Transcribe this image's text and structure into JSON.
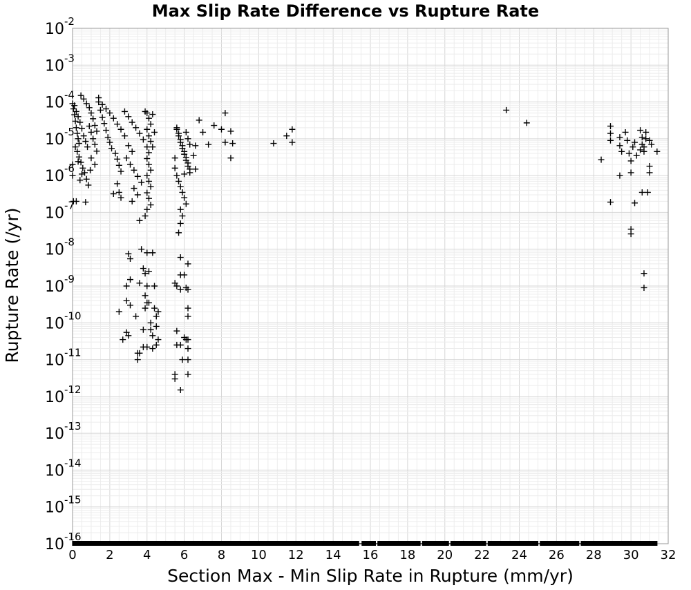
{
  "chart_data": {
    "type": "scatter",
    "title": "Max Slip Rate Difference vs Rupture Rate",
    "xlabel": "Section Max - Min Slip Rate in Rupture (mm/yr)",
    "ylabel": "Rupture Rate (/yr)",
    "xlim": [
      0,
      32
    ],
    "ylim": [
      1e-16,
      0.01
    ],
    "yscale": "log",
    "grid": true,
    "marker": "+",
    "marker_color": "#000000",
    "x_ticks": [
      "0",
      "2",
      "4",
      "6",
      "8",
      "10",
      "12",
      "14",
      "16",
      "18",
      "20",
      "22",
      "24",
      "26",
      "28",
      "30",
      "32"
    ],
    "y_ticks": [
      {
        "base": "10",
        "exp": "-2"
      },
      {
        "base": "10",
        "exp": "-3"
      },
      {
        "base": "10",
        "exp": "-4"
      },
      {
        "base": "10",
        "exp": "-5"
      },
      {
        "base": "10",
        "exp": "-6"
      },
      {
        "base": "10",
        "exp": "-7"
      },
      {
        "base": "10",
        "exp": "-8"
      },
      {
        "base": "10",
        "exp": "-9"
      },
      {
        "base": "10",
        "exp": "-10"
      },
      {
        "base": "10",
        "exp": "-11"
      },
      {
        "base": "10",
        "exp": "-12"
      },
      {
        "base": "10",
        "exp": "-13"
      },
      {
        "base": "10",
        "exp": "-14"
      },
      {
        "base": "10",
        "exp": "-15"
      },
      {
        "base": "10",
        "exp": "-16"
      }
    ],
    "points": [
      [
        0.0,
        9e-05
      ],
      [
        0.05,
        6.5e-05
      ],
      [
        0.1,
        4.5e-05
      ],
      [
        0.15,
        3e-05
      ],
      [
        0.2,
        2e-05
      ],
      [
        0.25,
        1.4e-05
      ],
      [
        0.3,
        1e-05
      ],
      [
        0.35,
        7.5e-06
      ],
      [
        0.1,
        8e-05
      ],
      [
        0.2,
        5.5e-05
      ],
      [
        0.3,
        4e-05
      ],
      [
        0.4,
        2.8e-05
      ],
      [
        0.5,
        1.9e-05
      ],
      [
        0.6,
        1.2e-05
      ],
      [
        0.7,
        8.5e-06
      ],
      [
        0.8,
        6e-06
      ],
      [
        0.45,
        0.00015
      ],
      [
        0.6,
        0.00012
      ],
      [
        0.75,
        9e-05
      ],
      [
        0.9,
        7e-05
      ],
      [
        1.0,
        5e-05
      ],
      [
        1.1,
        3.5e-05
      ],
      [
        1.2,
        2.3e-05
      ],
      [
        1.3,
        1.6e-05
      ],
      [
        0.15,
        6e-06
      ],
      [
        0.25,
        4.5e-06
      ],
      [
        0.35,
        3.2e-06
      ],
      [
        0.45,
        2.3e-06
      ],
      [
        0.55,
        1.6e-06
      ],
      [
        0.65,
        1.2e-06
      ],
      [
        0.75,
        8e-07
      ],
      [
        0.85,
        5.5e-07
      ],
      [
        0.0,
        2e-06
      ],
      [
        0.0,
        1e-06
      ],
      [
        0.05,
        2e-07
      ],
      [
        0.2,
        2e-07
      ],
      [
        0.7,
        1.9e-07
      ],
      [
        0.4,
        7.5e-07
      ],
      [
        0.5,
        1.1e-06
      ],
      [
        0.3,
        2.4e-06
      ],
      [
        1.4,
        0.0001
      ],
      [
        1.5,
        6e-05
      ],
      [
        1.6,
        3.8e-05
      ],
      [
        1.7,
        2.6e-05
      ],
      [
        1.8,
        1.7e-05
      ],
      [
        1.9,
        1.1e-05
      ],
      [
        2.0,
        8e-06
      ],
      [
        2.1,
        5.5e-06
      ],
      [
        1.4,
        0.00013
      ],
      [
        1.6,
        8.5e-05
      ],
      [
        1.8,
        6.5e-05
      ],
      [
        2.0,
        5e-05
      ],
      [
        2.2,
        3.6e-05
      ],
      [
        2.4,
        2.5e-05
      ],
      [
        2.6,
        1.8e-05
      ],
      [
        2.8,
        1.2e-05
      ],
      [
        0.9,
        2.2e-05
      ],
      [
        1.0,
        1.5e-05
      ],
      [
        1.1,
        1e-05
      ],
      [
        1.2,
        7e-06
      ],
      [
        1.3,
        4.6e-06
      ],
      [
        1.0,
        3e-06
      ],
      [
        1.2,
        2e-06
      ],
      [
        0.95,
        1.4e-06
      ],
      [
        2.3,
        4e-06
      ],
      [
        2.4,
        2.8e-06
      ],
      [
        2.5,
        1.9e-06
      ],
      [
        2.6,
        1.3e-06
      ],
      [
        2.4,
        6e-07
      ],
      [
        2.5,
        3.5e-07
      ],
      [
        2.6,
        2.5e-07
      ],
      [
        2.2,
        3.2e-07
      ],
      [
        2.8,
        5.5e-05
      ],
      [
        3.0,
        4e-05
      ],
      [
        3.2,
        2.8e-05
      ],
      [
        3.4,
        2e-05
      ],
      [
        3.6,
        1.4e-05
      ],
      [
        3.8,
        9.5e-06
      ],
      [
        3.0,
        6.5e-06
      ],
      [
        3.2,
        4.5e-06
      ],
      [
        2.9,
        3e-06
      ],
      [
        3.1,
        2e-06
      ],
      [
        3.3,
        1.4e-06
      ],
      [
        3.5,
        9.5e-07
      ],
      [
        3.7,
        6.5e-07
      ],
      [
        3.3,
        4.5e-07
      ],
      [
        3.5,
        3e-07
      ],
      [
        3.2,
        2e-07
      ],
      [
        4.0,
        5e-05
      ],
      [
        4.1,
        3.6e-05
      ],
      [
        4.2,
        2.5e-05
      ],
      [
        4.0,
        1.8e-05
      ],
      [
        4.1,
        1.2e-05
      ],
      [
        4.2,
        8.5e-06
      ],
      [
        4.0,
        6e-06
      ],
      [
        4.1,
        4.2e-06
      ],
      [
        4.0,
        2.9e-06
      ],
      [
        4.1,
        2e-06
      ],
      [
        4.2,
        1.4e-06
      ],
      [
        4.0,
        1e-06
      ],
      [
        4.1,
        7e-07
      ],
      [
        4.2,
        5e-07
      ],
      [
        4.0,
        3.4e-07
      ],
      [
        4.1,
        2.4e-07
      ],
      [
        4.2,
        1.6e-07
      ],
      [
        4.0,
        1.2e-07
      ],
      [
        3.9,
        5.5e-05
      ],
      [
        4.3,
        4.6e-05
      ],
      [
        4.4,
        1.5e-05
      ],
      [
        4.3,
        6e-06
      ],
      [
        3.6,
        6e-08
      ],
      [
        3.9,
        8e-08
      ],
      [
        5.6,
        2e-05
      ],
      [
        5.7,
        1.4e-05
      ],
      [
        5.8,
        9.5e-06
      ],
      [
        5.9,
        6.5e-06
      ],
      [
        6.0,
        4.5e-06
      ],
      [
        6.1,
        3.1e-06
      ],
      [
        6.2,
        2.2e-06
      ],
      [
        6.3,
        1.5e-06
      ],
      [
        5.6,
        1.8e-05
      ],
      [
        5.7,
        1.2e-05
      ],
      [
        5.8,
        8e-06
      ],
      [
        5.9,
        5.5e-06
      ],
      [
        6.0,
        3.8e-06
      ],
      [
        6.1,
        2.6e-06
      ],
      [
        6.2,
        1.8e-06
      ],
      [
        6.3,
        1.2e-06
      ],
      [
        5.6,
        1e-06
      ],
      [
        5.7,
        7e-07
      ],
      [
        5.8,
        5e-07
      ],
      [
        5.9,
        3.5e-07
      ],
      [
        6.0,
        2.5e-07
      ],
      [
        6.1,
        1.7e-07
      ],
      [
        5.8,
        1.2e-07
      ],
      [
        5.9,
        8e-08
      ],
      [
        5.8,
        5e-08
      ],
      [
        5.7,
        2.8e-08
      ],
      [
        6.1,
        1.5e-05
      ],
      [
        6.2,
        1e-05
      ],
      [
        6.3,
        7e-06
      ],
      [
        5.5,
        3e-06
      ],
      [
        5.5,
        1.6e-06
      ],
      [
        6.0,
        1.1e-06
      ],
      [
        6.5,
        3.5e-06
      ],
      [
        6.6,
        1.5e-06
      ],
      [
        6.6,
        6.5e-06
      ],
      [
        6.8,
        3.2e-05
      ],
      [
        7.0,
        1.5e-05
      ],
      [
        7.3,
        7e-06
      ],
      [
        7.6,
        2.3e-05
      ],
      [
        8.0,
        1.8e-05
      ],
      [
        8.2,
        5e-05
      ],
      [
        8.2,
        8e-06
      ],
      [
        8.5,
        1.6e-05
      ],
      [
        8.5,
        3e-06
      ],
      [
        8.6,
        7.5e-06
      ],
      [
        10.8,
        7.5e-06
      ],
      [
        11.5,
        1.2e-05
      ],
      [
        11.8,
        1.8e-05
      ],
      [
        11.8,
        8e-06
      ],
      [
        23.3,
        6e-05
      ],
      [
        24.4,
        2.7e-05
      ],
      [
        28.4,
        2.7e-06
      ],
      [
        28.9,
        2.2e-05
      ],
      [
        28.9,
        9e-06
      ],
      [
        28.9,
        1.9e-07
      ],
      [
        29.4,
        1.1e-05
      ],
      [
        29.4,
        6.5e-06
      ],
      [
        29.4,
        1e-06
      ],
      [
        29.7,
        1.5e-05
      ],
      [
        29.8,
        9e-06
      ],
      [
        29.9,
        4e-06
      ],
      [
        30.0,
        2.5e-06
      ],
      [
        30.0,
        1.2e-06
      ],
      [
        30.1,
        6e-06
      ],
      [
        30.2,
        8e-06
      ],
      [
        30.2,
        1.8e-07
      ],
      [
        30.5,
        1.7e-05
      ],
      [
        30.6,
        1.1e-05
      ],
      [
        30.6,
        7e-06
      ],
      [
        30.6,
        3.5e-07
      ],
      [
        30.7,
        6e-06
      ],
      [
        30.7,
        4.5e-06
      ],
      [
        30.8,
        1.5e-05
      ],
      [
        30.9,
        3.5e-07
      ],
      [
        31.0,
        1.8e-06
      ],
      [
        31.0,
        1.2e-06
      ],
      [
        31.0,
        9e-06
      ],
      [
        31.1,
        7e-06
      ],
      [
        31.4,
        4.5e-06
      ],
      [
        30.0,
        3.5e-08
      ],
      [
        30.0,
        2.6e-08
      ],
      [
        30.7,
        2.2e-09
      ],
      [
        30.7,
        9e-10
      ],
      [
        30.3,
        3.5e-06
      ],
      [
        30.5,
        5e-06
      ],
      [
        29.5,
        4.5e-06
      ],
      [
        28.9,
        1.4e-05
      ],
      [
        30.8,
        1e-05
      ],
      [
        2.5,
        2e-10
      ],
      [
        2.7,
        3.5e-11
      ],
      [
        2.9,
        5.5e-11
      ],
      [
        2.9,
        4e-10
      ],
      [
        2.9,
        1e-09
      ],
      [
        3.0,
        4.5e-11
      ],
      [
        3.0,
        7.5e-09
      ],
      [
        3.1,
        5.5e-09
      ],
      [
        3.1,
        1.5e-09
      ],
      [
        3.1,
        3e-10
      ],
      [
        3.4,
        1.5e-10
      ],
      [
        3.5,
        1.5e-11
      ],
      [
        3.5,
        1e-11
      ],
      [
        3.6,
        1.5e-11
      ],
      [
        3.6,
        1.2e-09
      ],
      [
        3.7,
        1e-08
      ],
      [
        3.8,
        3e-09
      ],
      [
        3.8,
        6.5e-11
      ],
      [
        3.8,
        2.2e-11
      ],
      [
        3.9,
        2.2e-09
      ],
      [
        3.9,
        5.5e-10
      ],
      [
        3.9,
        2.5e-10
      ],
      [
        4.0,
        1e-09
      ],
      [
        4.0,
        3.5e-10
      ],
      [
        4.0,
        2.2e-11
      ],
      [
        4.0,
        8e-09
      ],
      [
        4.1,
        2.5e-09
      ],
      [
        4.1,
        3.5e-10
      ],
      [
        4.2,
        1e-10
      ],
      [
        4.2,
        6.5e-11
      ],
      [
        4.3,
        4.5e-11
      ],
      [
        4.3,
        2e-11
      ],
      [
        4.3,
        8e-09
      ],
      [
        4.4,
        2.5e-10
      ],
      [
        4.4,
        1e-09
      ],
      [
        4.5,
        1.5e-10
      ],
      [
        4.5,
        8e-11
      ],
      [
        4.5,
        2.5e-11
      ],
      [
        4.6,
        2e-10
      ],
      [
        4.6,
        3.5e-11
      ],
      [
        5.5,
        1.2e-09
      ],
      [
        5.6,
        1e-09
      ],
      [
        5.6,
        6e-11
      ],
      [
        5.6,
        2.5e-11
      ],
      [
        5.5,
        4e-12
      ],
      [
        5.5,
        3e-12
      ],
      [
        5.8,
        6e-09
      ],
      [
        5.8,
        2e-09
      ],
      [
        5.8,
        8e-10
      ],
      [
        5.8,
        2.5e-11
      ],
      [
        5.8,
        1.5e-12
      ],
      [
        5.9,
        1e-11
      ],
      [
        6.0,
        4e-11
      ],
      [
        6.0,
        2e-09
      ],
      [
        6.1,
        9e-10
      ],
      [
        6.2,
        4e-09
      ],
      [
        6.2,
        8e-10
      ],
      [
        6.2,
        2.5e-10
      ],
      [
        6.2,
        1.5e-10
      ],
      [
        6.2,
        3.5e-11
      ],
      [
        6.2,
        2e-11
      ],
      [
        6.2,
        1e-11
      ],
      [
        6.2,
        4e-12
      ],
      [
        6.1,
        3.5e-11
      ]
    ],
    "rug_value": 1e-16,
    "rug_x_range": [
      0.0,
      31.4
    ]
  }
}
